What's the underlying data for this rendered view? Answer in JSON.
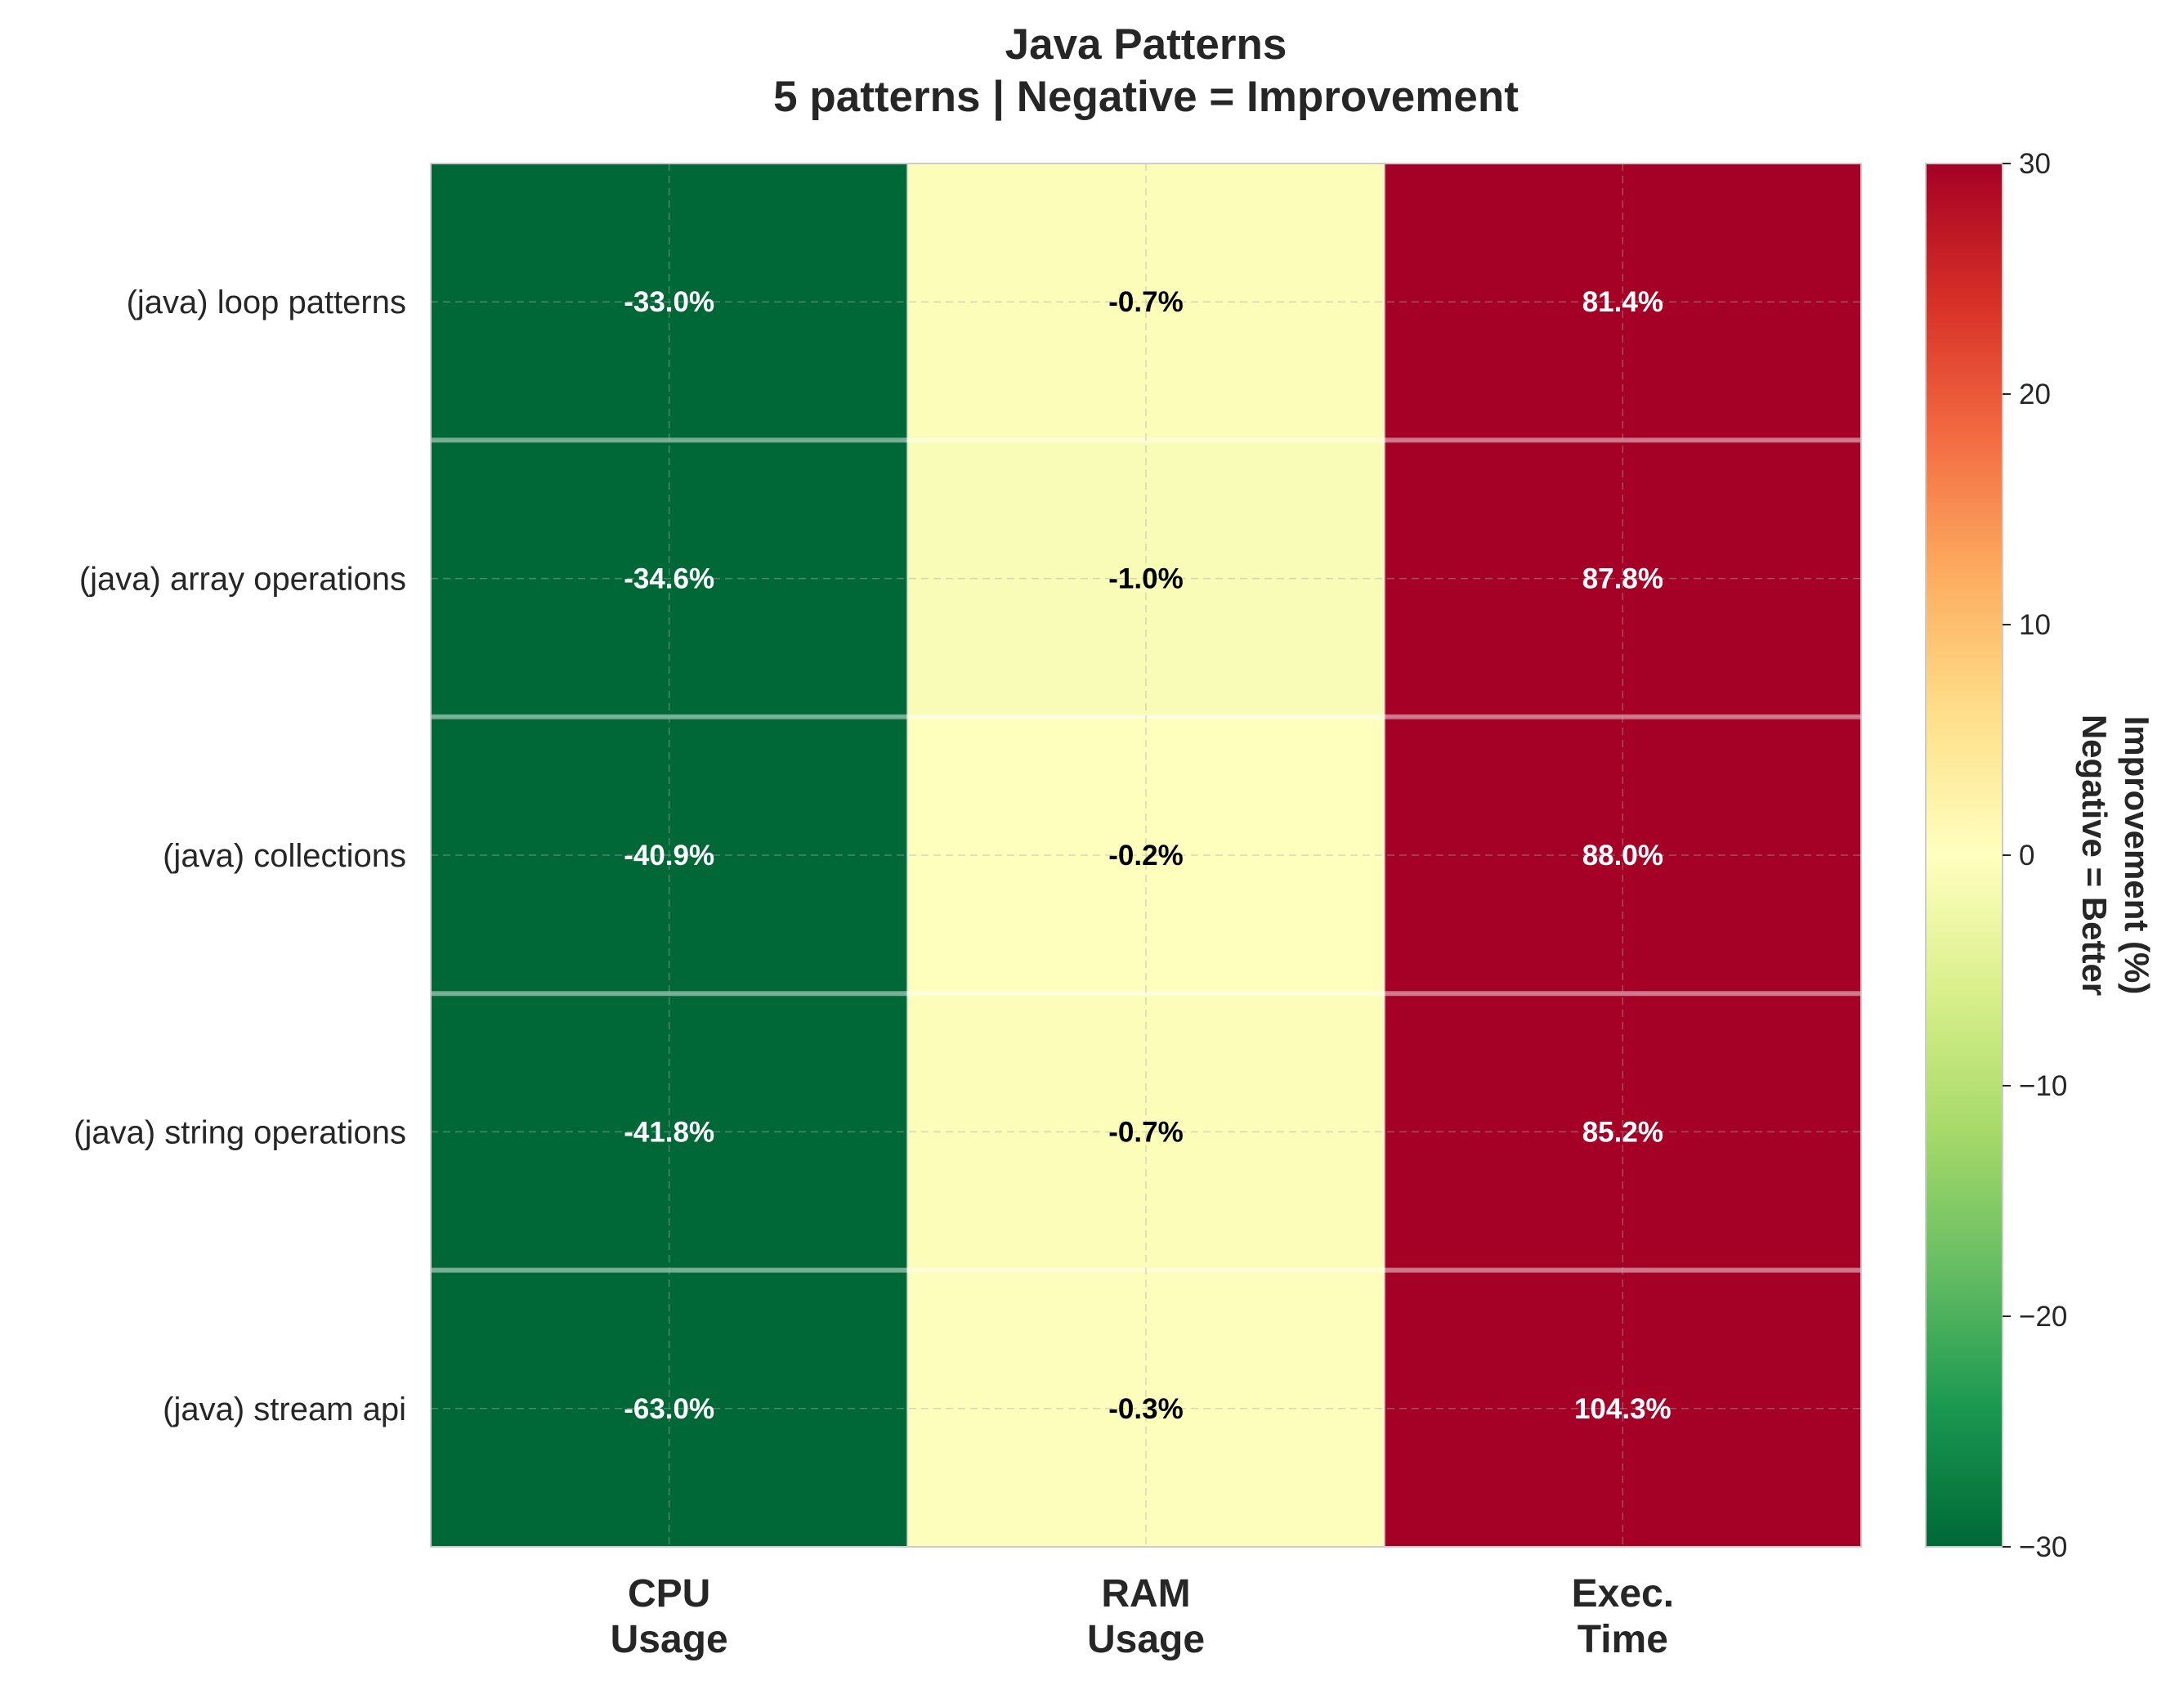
{
  "chart_data": {
    "type": "heatmap",
    "title": "Java Patterns",
    "subtitle": "5 patterns | Negative = Improvement",
    "rows": [
      "(java) loop patterns",
      "(java) array operations",
      "(java) collections",
      "(java) string operations",
      "(java) stream api"
    ],
    "columns": [
      [
        "CPU",
        "Usage"
      ],
      [
        "RAM",
        "Usage"
      ],
      [
        "Exec.",
        "Time"
      ]
    ],
    "values": [
      [
        -33.0,
        -0.7,
        81.4
      ],
      [
        -34.6,
        -1.0,
        87.8
      ],
      [
        -40.9,
        -0.2,
        88.0
      ],
      [
        -41.8,
        -0.7,
        85.2
      ],
      [
        -63.0,
        -0.3,
        104.3
      ]
    ],
    "value_labels": [
      [
        "-33.0%",
        "-0.7%",
        "81.4%"
      ],
      [
        "-34.6%",
        "-1.0%",
        "87.8%"
      ],
      [
        "-40.9%",
        "-0.2%",
        "88.0%"
      ],
      [
        "-41.8%",
        "-0.7%",
        "85.2%"
      ],
      [
        "-63.0%",
        "-0.3%",
        "104.3%"
      ]
    ],
    "colorbar": {
      "label": [
        "Improvement (%)",
        "Negative = Better"
      ],
      "range": [
        -30,
        30
      ],
      "ticks": [
        -30,
        -20,
        -10,
        0,
        10,
        20,
        30
      ],
      "tick_labels": [
        "−30",
        "−20",
        "−10",
        "0",
        "10",
        "20",
        "30"
      ],
      "colormap": "RdYlGn_r"
    },
    "grid": true
  }
}
